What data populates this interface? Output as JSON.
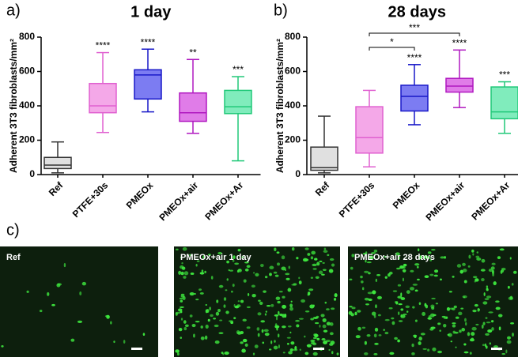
{
  "chart_data": [
    {
      "type": "box",
      "panel": "a)",
      "title": "1 day",
      "ylabel": "Adherent 3T3 fibroblasts/mm²",
      "categories": [
        "Ref",
        "PTFE+30s",
        "PMEOx",
        "PMEOx+air",
        "PMEOx+Ar"
      ],
      "colors": [
        "#e0e0e0",
        "#f4a8e8",
        "#7c7cf2",
        "#e07ce8",
        "#80ecbc"
      ],
      "edgecolors": [
        "#333333",
        "#e060d0",
        "#1818c8",
        "#b018c0",
        "#20c878"
      ],
      "boxes": [
        {
          "min": 10,
          "q1": 35,
          "median": 55,
          "q3": 100,
          "max": 190
        },
        {
          "min": 245,
          "q1": 360,
          "median": 400,
          "q3": 530,
          "max": 710
        },
        {
          "min": 365,
          "q1": 440,
          "median": 580,
          "q3": 610,
          "max": 730
        },
        {
          "min": 240,
          "q1": 310,
          "median": 360,
          "q3": 475,
          "max": 670
        },
        {
          "min": 80,
          "q1": 355,
          "median": 395,
          "q3": 490,
          "max": 570
        }
      ],
      "significance": [
        null,
        "****",
        "****",
        "**",
        "***"
      ],
      "brackets": [],
      "ylim": [
        0,
        800
      ],
      "yticks": [
        0,
        200,
        400,
        600,
        800
      ]
    },
    {
      "type": "box",
      "panel": "b)",
      "title": "28 days",
      "ylabel": "Adherent 3T3 fibroblasts/mm²",
      "categories": [
        "Ref",
        "PTFE+30s",
        "PMEOx",
        "PMEOx+air",
        "PMEOx+Ar"
      ],
      "colors": [
        "#e0e0e0",
        "#f4a8e8",
        "#7c7cf2",
        "#e07ce8",
        "#80ecbc"
      ],
      "edgecolors": [
        "#333333",
        "#e060d0",
        "#1818c8",
        "#b018c0",
        "#20c878"
      ],
      "boxes": [
        {
          "min": 10,
          "q1": 25,
          "median": 40,
          "q3": 160,
          "max": 340
        },
        {
          "min": 45,
          "q1": 125,
          "median": 215,
          "q3": 395,
          "max": 490
        },
        {
          "min": 290,
          "q1": 370,
          "median": 455,
          "q3": 520,
          "max": 640
        },
        {
          "min": 390,
          "q1": 480,
          "median": 515,
          "q3": 560,
          "max": 725
        },
        {
          "min": 240,
          "q1": 325,
          "median": 365,
          "q3": 510,
          "max": 540
        }
      ],
      "significance": [
        null,
        null,
        "****",
        "****",
        "***"
      ],
      "brackets": [
        {
          "between": [
            "PTFE+30s",
            "PMEOx"
          ],
          "label": "*"
        },
        {
          "between": [
            "PTFE+30s",
            "PMEOx+air"
          ],
          "label": "***"
        }
      ],
      "ylim": [
        0,
        800
      ],
      "yticks": [
        0,
        200,
        400,
        600,
        800
      ]
    }
  ],
  "panel_c": {
    "label": "c)",
    "images": [
      {
        "label": "Ref"
      },
      {
        "label": "PMEOx+air 1 day"
      },
      {
        "label": "PMEOx+air 28 days"
      }
    ]
  }
}
